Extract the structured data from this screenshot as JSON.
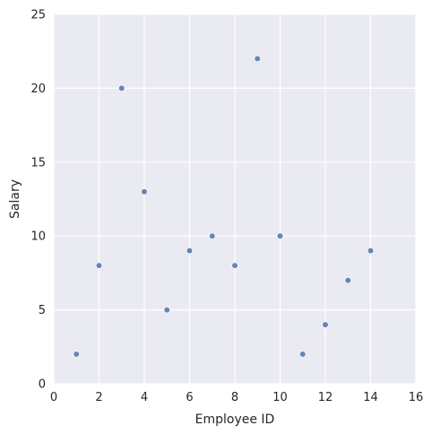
{
  "chart_data": {
    "type": "scatter",
    "title": "",
    "xlabel": "Employee ID",
    "ylabel": "Salary",
    "xlim": [
      0,
      16
    ],
    "ylim": [
      0,
      25
    ],
    "xticks": [
      0,
      2,
      4,
      6,
      8,
      10,
      12,
      14,
      16
    ],
    "yticks": [
      0,
      5,
      10,
      15,
      20,
      25
    ],
    "grid": true,
    "legend": "none",
    "colors": {
      "background": "#eaeaf2",
      "grid": "#ffffff",
      "marker": "#4c72b0"
    },
    "series": [
      {
        "x": [
          1,
          2,
          3,
          4,
          5,
          6,
          7,
          8,
          9,
          10,
          11,
          12,
          13,
          14
        ],
        "y": [
          2,
          8,
          20,
          13,
          5,
          9,
          10,
          8,
          22,
          10,
          2,
          4,
          7,
          9
        ]
      }
    ]
  }
}
